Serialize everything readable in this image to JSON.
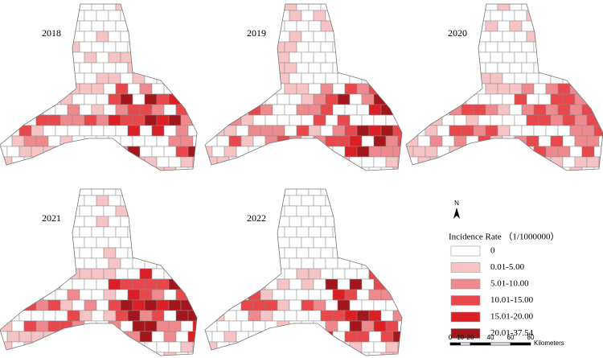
{
  "panels": [
    {
      "year": "2018"
    },
    {
      "year": "2019"
    },
    {
      "year": "2020"
    },
    {
      "year": "2021"
    },
    {
      "year": "2022"
    }
  ],
  "legend": {
    "title": "Incidence Rate （1/1000000）",
    "items": [
      {
        "label": "0",
        "color": "#ffffff"
      },
      {
        "label": "0.01-5.00",
        "color": "#f7c4c6"
      },
      {
        "label": "5.01-10.00",
        "color": "#ee8a8d"
      },
      {
        "label": "10.01-15.00",
        "color": "#e8474b"
      },
      {
        "label": "15.01-20.00",
        "color": "#dc1e25"
      },
      {
        "label": "20.01-37.54",
        "color": "#a3171c"
      }
    ]
  },
  "north": "N",
  "scale_bar": {
    "ticks": [
      "0",
      "10",
      "20",
      "40",
      "60",
      "80"
    ],
    "unit": "Kilometers"
  }
}
